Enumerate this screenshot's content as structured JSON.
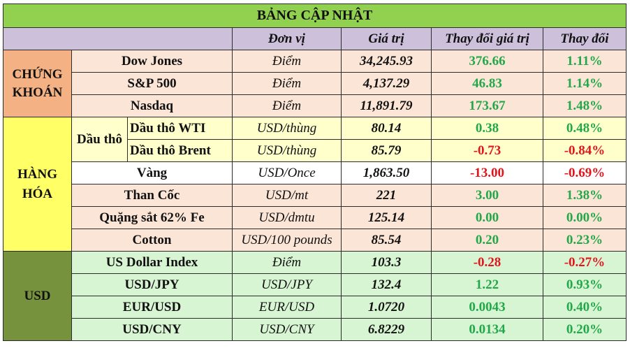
{
  "title": "BẢNG CẬP NHẬT",
  "headers": {
    "unit": "Đơn vị",
    "value": "Giá trị",
    "change": "Thay đổi giá trị",
    "pct": "Thay đổi"
  },
  "groups": {
    "stocks": "CHỨNG KHOÁN",
    "commodities": "HÀNG HÓA",
    "usd": "USD",
    "oil": "Dầu thô"
  },
  "rows": [
    {
      "name": "Dow Jones",
      "unit": "Điểm",
      "value": "34,245.93",
      "change": "376.66",
      "pct": "1.11%"
    },
    {
      "name": "S&P 500",
      "unit": "Điểm",
      "value": "4,137.29",
      "change": "46.83",
      "pct": "1.14%"
    },
    {
      "name": "Nasdaq",
      "unit": "Điểm",
      "value": "11,891.79",
      "change": "173.67",
      "pct": "1.48%"
    },
    {
      "name": "Dầu thô WTI",
      "unit": "USD/thùng",
      "value": "80.14",
      "change": "0.38",
      "pct": "0.48%"
    },
    {
      "name": "Dầu thô Brent",
      "unit": "USD/thùng",
      "value": "85.79",
      "change": "-0.73",
      "pct": "-0.84%"
    },
    {
      "name": "Vàng",
      "unit": "USD/Once",
      "value": "1,863.50",
      "change": "-13.00",
      "pct": "-0.69%"
    },
    {
      "name": "Than Cốc",
      "unit": "USD/mt",
      "value": "221",
      "change": "3.00",
      "pct": "1.38%"
    },
    {
      "name": "Quặng sắt 62% Fe",
      "unit": "USD/dmtu",
      "value": "125.14",
      "change": "0.00",
      "pct": "0.00%"
    },
    {
      "name": "Cotton",
      "unit": "USD/100 pounds",
      "value": "85.54",
      "change": "0.20",
      "pct": "0.23%"
    },
    {
      "name": "US Dollar Index",
      "unit": "Điểm",
      "value": "103.3",
      "change": "-0.28",
      "pct": "-0.27%"
    },
    {
      "name": "USD/JPY",
      "unit": "USD/JPY",
      "value": "132.4",
      "change": "1.22",
      "pct": "0.93%"
    },
    {
      "name": "EUR/USD",
      "unit": "EUR/USD",
      "value": "1.0720",
      "change": "0.0043",
      "pct": "0.40%"
    },
    {
      "name": "USD/CNY",
      "unit": "USD/CNY",
      "value": "6.8229",
      "change": "0.0134",
      "pct": "0.20%"
    }
  ],
  "colors": {
    "title_bg": "#92d050",
    "header_bg": "#ccc0da",
    "stocks_cat": "#f4b183",
    "stocks_row": "#fbe5d6",
    "commodities_cat": "#ffff66",
    "oil_row": "#ffffcc",
    "usd_cat": "#76923c",
    "usd_row": "#d8f5d3",
    "positive": "#22a84a",
    "negative": "#e0161c"
  }
}
